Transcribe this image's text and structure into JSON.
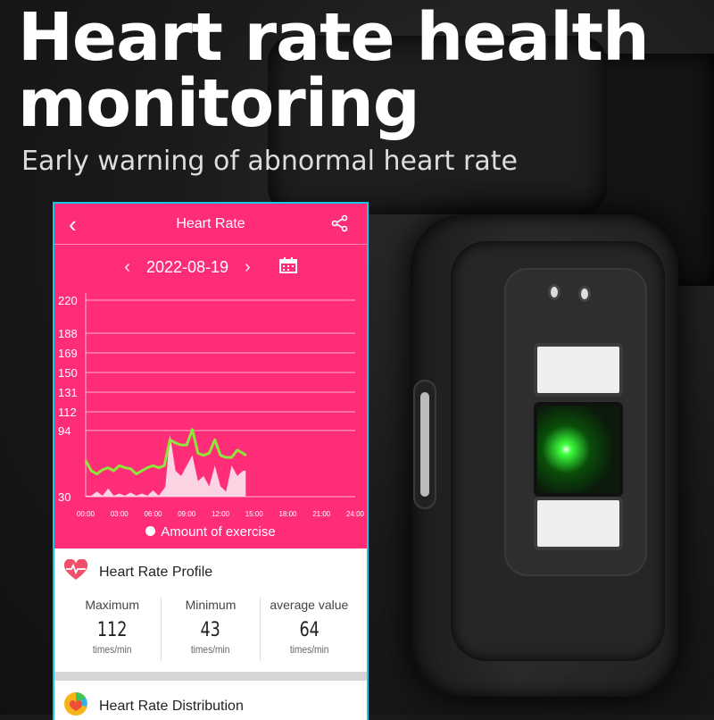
{
  "headline": {
    "title_line1": "Heart rate health",
    "title_line2": "monitoring",
    "subtitle": "Early warning of abnormal heart rate"
  },
  "app": {
    "header": {
      "title": "Heart Rate",
      "back_icon": "chevron-left-icon",
      "share_icon": "share-icon"
    },
    "date_nav": {
      "date": "2022-08-19",
      "prev_icon": "chevron-left-icon",
      "next_icon": "chevron-right-icon",
      "calendar_icon": "calendar-icon"
    },
    "legend": "Amount of exercise",
    "profile": {
      "title": "Heart Rate Profile",
      "icon": "heart-pulse-icon",
      "stats": [
        {
          "label": "Maximum",
          "value": "112",
          "unit": "times/min"
        },
        {
          "label": "Minimum",
          "value": "43",
          "unit": "times/min"
        },
        {
          "label": "average value",
          "value": "64",
          "unit": "times/min"
        }
      ]
    },
    "distribution": {
      "title": "Heart Rate Distribution",
      "icon": "pie-chart-icon"
    }
  },
  "colors": {
    "accent": "#ff2d78",
    "heart_line": "#8ee63a",
    "exercise_fill": "#fbd3e2",
    "frame": "#1cc6e6"
  },
  "chart_data": {
    "type": "line",
    "yticks": [
      30,
      94,
      112,
      131,
      150,
      169,
      188,
      220
    ],
    "ylim": [
      30,
      220
    ],
    "xticks": [
      "00:00",
      "03:00",
      "06:00",
      "09:00",
      "12:00",
      "15:00",
      "18:00",
      "21:00",
      "24:00"
    ],
    "xlim_hours": [
      0,
      24
    ],
    "grid": true,
    "legend_placement": "bottom",
    "series": [
      {
        "kind": "line",
        "x_hours": [
          0,
          0.5,
          1,
          1.5,
          2,
          2.5,
          3,
          3.5,
          4,
          4.5,
          5,
          5.5,
          6,
          6.5,
          7,
          7.5,
          8,
          8.5,
          9,
          9.5,
          10,
          10.5,
          11,
          11.5,
          12,
          12.5,
          13,
          13.5,
          14,
          14.25
        ],
        "values": [
          65,
          55,
          52,
          56,
          58,
          55,
          60,
          58,
          57,
          52,
          55,
          58,
          60,
          58,
          60,
          85,
          82,
          80,
          80,
          95,
          72,
          70,
          72,
          85,
          70,
          68,
          68,
          75,
          72,
          70
        ]
      },
      {
        "kind": "area",
        "name": "Amount of exercise",
        "x_hours": [
          0,
          0.5,
          1,
          1.5,
          2,
          2.5,
          3,
          3.5,
          4,
          4.5,
          5,
          5.5,
          6,
          6.5,
          7,
          7.1,
          7.5,
          8,
          8.5,
          9,
          9.5,
          10,
          10.5,
          11,
          11.5,
          12,
          12.5,
          13,
          13.5,
          14,
          14.25
        ],
        "values": [
          31,
          31,
          35,
          31,
          38,
          31,
          33,
          31,
          34,
          31,
          33,
          31,
          36,
          31,
          38,
          40,
          90,
          55,
          50,
          60,
          70,
          45,
          50,
          40,
          60,
          40,
          35,
          60,
          50,
          55,
          55
        ]
      }
    ]
  }
}
